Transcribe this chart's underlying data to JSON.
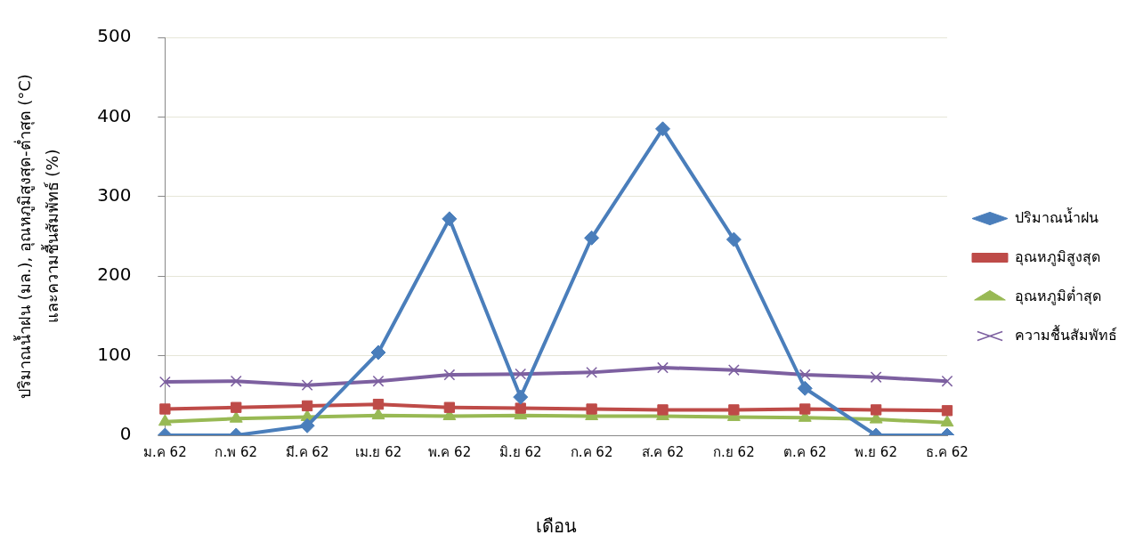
{
  "chart_data": {
    "type": "line",
    "xlabel": "เดือน",
    "ylabel": "ปริมาณน้ำฝน (มล.), อุณหภูมิสูงสุด-ต่ำสุด (°C)\nและความชื้นสัมพัทธ์ (%)",
    "categories": [
      "ม.ค 62",
      "ก.พ 62",
      "มี.ค 62",
      "เม.ย 62",
      "พ.ค 62",
      "มิ.ย 62",
      "ก.ค 62",
      "ส.ค 62",
      "ก.ย 62",
      "ต.ค 62",
      "พ.ย 62",
      "ธ.ค 62"
    ],
    "series": [
      {
        "name": "ปริมาณน้ำฝน",
        "color": "#4a7ebb",
        "marker": "diamond",
        "values": [
          0,
          0,
          12,
          104,
          272,
          48,
          248,
          385,
          246,
          59,
          0,
          0
        ]
      },
      {
        "name": "อุณหภูมิสูงสุด",
        "color": "#be4b48",
        "marker": "square",
        "values": [
          33,
          35,
          37,
          39,
          35,
          34,
          33,
          32,
          32,
          33,
          32,
          31
        ]
      },
      {
        "name": "อุณหภูมิต่ำสุด",
        "color": "#98b954",
        "marker": "triangle",
        "values": [
          17,
          21,
          23,
          25,
          24,
          25,
          24,
          24,
          23,
          22,
          20,
          16
        ]
      },
      {
        "name": "ความชื้นสัมพัทธ์",
        "color": "#7d60a0",
        "marker": "cross",
        "values": [
          67,
          68,
          63,
          68,
          76,
          77,
          79,
          85,
          82,
          76,
          73,
          68
        ]
      }
    ],
    "ylim": [
      0,
      500
    ],
    "yticks": [
      0,
      100,
      200,
      300,
      400,
      500
    ],
    "grid": "y",
    "legend": "right",
    "line_style": "solid"
  }
}
